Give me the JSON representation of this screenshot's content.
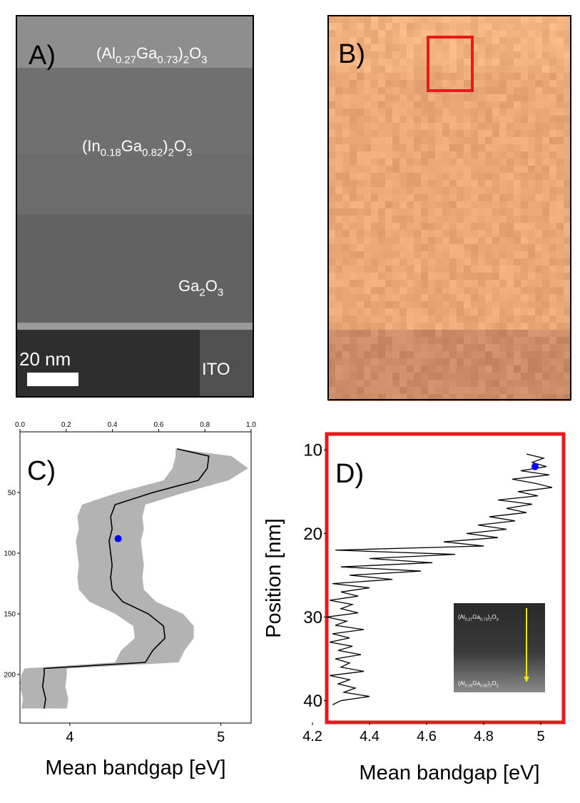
{
  "images": {
    "a": {
      "label": "A)",
      "layers": [
        [
          "(Al",
          "0.27",
          "Ga",
          "0.73",
          ")",
          "2",
          "O",
          "3"
        ],
        [
          "(In",
          "0.18",
          "Ga",
          "0.82",
          ")",
          "2",
          "O",
          "3"
        ],
        [
          "Ga",
          "2",
          "O",
          "3"
        ]
      ],
      "substrate": "ITO",
      "scale_bar": "20 nm"
    },
    "b": {
      "label": "B)"
    }
  },
  "chart_data": [
    {
      "type": "line",
      "panel_label": "C)",
      "xlabel": "Mean bandgap [eV]",
      "xlim": [
        3.67,
        5.2
      ],
      "xticks": [
        4,
        5
      ],
      "x2lim": [
        0,
        1
      ],
      "x2ticks": [
        {
          "value": 0,
          "label": "0.0"
        },
        0.2,
        0.4,
        0.6,
        0.8,
        {
          "value": 1,
          "label": "1.0"
        }
      ],
      "ylim": [
        240,
        0
      ],
      "yticks": [
        50,
        100,
        150,
        200
      ],
      "y": [
        14,
        20,
        30,
        40,
        50,
        60,
        70,
        80,
        90,
        100,
        110,
        120,
        130,
        140,
        150,
        160,
        170,
        180,
        190,
        195,
        200,
        210,
        220,
        228
      ],
      "values": [
        4.71,
        4.92,
        4.91,
        4.85,
        4.55,
        4.3,
        4.27,
        4.28,
        4.26,
        4.27,
        4.28,
        4.27,
        4.28,
        4.35,
        4.52,
        4.62,
        4.63,
        4.55,
        4.5,
        3.83,
        3.83,
        3.82,
        3.84,
        3.83
      ],
      "band_low": [
        4.7,
        4.7,
        4.68,
        4.62,
        4.32,
        4.08,
        4.05,
        4.06,
        4.04,
        4.05,
        4.06,
        4.05,
        4.06,
        4.13,
        4.3,
        4.42,
        4.43,
        4.34,
        4.3,
        3.7,
        3.68,
        3.67,
        3.69,
        3.68
      ],
      "band_high": [
        4.71,
        5.07,
        5.18,
        5.05,
        4.76,
        4.5,
        4.48,
        4.49,
        4.47,
        4.48,
        4.49,
        4.48,
        4.49,
        4.57,
        4.75,
        4.82,
        4.82,
        4.76,
        4.72,
        3.98,
        3.98,
        3.97,
        3.99,
        3.98
      ],
      "color": "#000000",
      "band_color": "#b3b3b3",
      "marker": {
        "x": 4.32,
        "y": 88,
        "color": "#0000ff"
      }
    },
    {
      "type": "line",
      "panel_label": "D)",
      "xlabel": "Mean bandgap [eV]",
      "ylabel": "Position [nm]",
      "xlim": [
        4.25,
        5.08
      ],
      "xticks": [
        4.2,
        4.4,
        4.6,
        4.8,
        5
      ],
      "ylim": [
        42.6,
        8.1
      ],
      "yticks": [
        10,
        20,
        30,
        40
      ],
      "y": [
        10.5,
        11,
        11.5,
        12,
        12.5,
        13,
        13.5,
        14,
        14.5,
        15,
        15.5,
        16,
        16.5,
        17,
        17.5,
        18,
        18.5,
        19,
        19.5,
        20,
        20.5,
        21,
        21.5,
        22,
        22.5,
        23,
        23.5,
        24,
        24.5,
        25,
        25.5,
        26,
        26.5,
        27,
        27.5,
        28,
        28.5,
        29,
        29.5,
        30,
        30.5,
        31,
        31.5,
        32,
        32.5,
        33,
        33.5,
        34,
        34.5,
        35,
        35.5,
        36,
        36.5,
        37,
        37.5,
        38,
        38.5,
        39,
        39.5,
        40,
        40.5
      ],
      "values": [
        4.95,
        5.01,
        4.97,
        5.02,
        4.93,
        5.03,
        4.9,
        4.98,
        5.04,
        4.92,
        4.99,
        4.85,
        4.97,
        4.88,
        4.95,
        4.82,
        4.91,
        4.78,
        4.88,
        4.74,
        4.85,
        4.66,
        4.8,
        4.28,
        4.7,
        4.4,
        4.62,
        4.3,
        4.58,
        4.33,
        4.48,
        4.27,
        4.4,
        4.3,
        4.36,
        4.26,
        4.34,
        4.3,
        4.36,
        4.25,
        4.32,
        4.28,
        4.38,
        4.27,
        4.33,
        4.26,
        4.34,
        4.29,
        4.37,
        4.28,
        4.33,
        4.3,
        4.38,
        4.26,
        4.33,
        4.29,
        4.35,
        4.31,
        4.4,
        4.3,
        4.27
      ],
      "color": "#000000",
      "frame_color": "#e8191c",
      "marker": {
        "x": 4.98,
        "y": 12,
        "color": "#0000ff"
      },
      "inset_labels": [
        [
          "(Al",
          "0.27",
          "Ga",
          "0.73",
          ")",
          "2",
          "O",
          "3"
        ],
        [
          "(Al",
          "0.18",
          "Ga",
          "0.82",
          ")",
          "2",
          "O",
          "3"
        ]
      ]
    }
  ]
}
